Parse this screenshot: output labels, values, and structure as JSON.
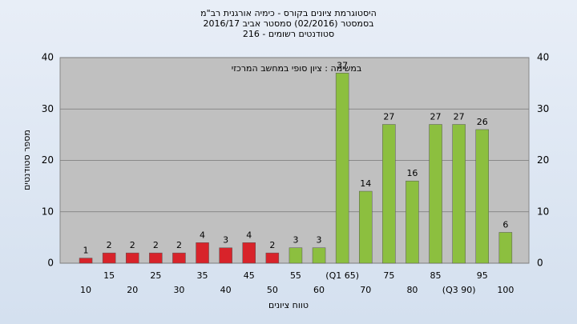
{
  "chart_data": {
    "type": "bar",
    "title": [
      "היסטוגרמת ציונים בקורס - כימיה אורגנית רב\"מ",
      "בסמסטר  (02/2016)  סמסטר אביב 2016/17",
      "סטודנטים רשומים - 216"
    ],
    "subtitle": "במשימה : ציון סופי במחשב המרכזי",
    "y_label": "מספר סטודנטים",
    "x_label": "טווח ציונים",
    "categories": [
      "10",
      "15",
      "20",
      "25",
      "30",
      "35",
      "40",
      "45",
      "50",
      "55",
      "60",
      "(Q1 65)",
      "70",
      "75",
      "80",
      "85",
      "(Q3 90)",
      "95",
      "100"
    ],
    "values": [
      1,
      2,
      2,
      2,
      2,
      4,
      3,
      4,
      2,
      3,
      3,
      37,
      14,
      27,
      16,
      27,
      27,
      26,
      6
    ],
    "colors": [
      "#d8232a",
      "#d8232a",
      "#d8232a",
      "#d8232a",
      "#d8232a",
      "#d8232a",
      "#d8232a",
      "#d8232a",
      "#d8232a",
      "#8cbf3f",
      "#8cbf3f",
      "#8cbf3f",
      "#8cbf3f",
      "#8cbf3f",
      "#8cbf3f",
      "#8cbf3f",
      "#8cbf3f",
      "#8cbf3f",
      "#8cbf3f"
    ],
    "ylim": [
      0,
      40
    ],
    "yticks": [
      0,
      10,
      20,
      30,
      40
    ],
    "grid": true
  }
}
